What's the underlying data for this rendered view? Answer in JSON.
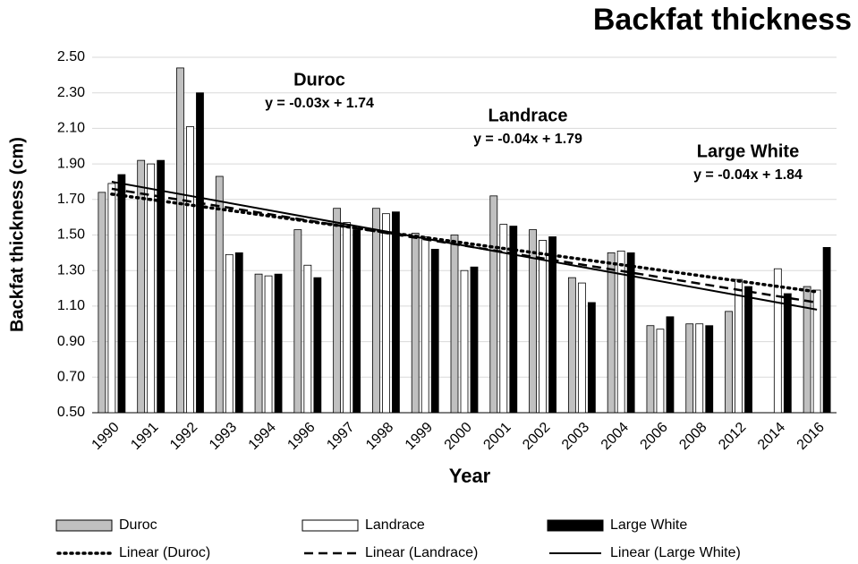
{
  "chart_data": {
    "type": "bar",
    "title": "Backfat thickness",
    "x_label": "Year",
    "y_label": "Backfat thickness (cm)",
    "categories": [
      "1990",
      "1991",
      "1992",
      "1993",
      "1994",
      "1996",
      "1997",
      "1998",
      "1999",
      "2000",
      "2001",
      "2002",
      "2003",
      "2004",
      "2006",
      "2008",
      "2012",
      "2014",
      "2016"
    ],
    "series": [
      {
        "name": "Duroc",
        "color": "#c0c0c0",
        "values": [
          1.74,
          1.92,
          2.44,
          1.83,
          1.28,
          1.53,
          1.65,
          1.65,
          1.51,
          1.5,
          1.72,
          1.53,
          1.26,
          1.4,
          0.99,
          1.0,
          1.07,
          null,
          1.21
        ]
      },
      {
        "name": "Landrace",
        "color": "#ffffff",
        "values": [
          1.79,
          1.9,
          2.11,
          1.39,
          1.27,
          1.33,
          1.57,
          1.62,
          1.49,
          1.3,
          1.56,
          1.47,
          1.23,
          1.41,
          0.97,
          1.0,
          1.25,
          1.31,
          1.19
        ]
      },
      {
        "name": "Large White",
        "color": "#000000",
        "values": [
          1.84,
          1.92,
          2.3,
          1.4,
          1.28,
          1.26,
          1.53,
          1.63,
          1.42,
          1.32,
          1.55,
          1.49,
          1.12,
          1.4,
          1.04,
          0.99,
          1.21,
          1.17,
          1.43
        ]
      }
    ],
    "trendlines": [
      {
        "name": "Linear (Duroc)",
        "label": "Duroc",
        "equation": "y = -0.03x + 1.74",
        "style": "dotted",
        "values": [
          1.73,
          1.18
        ]
      },
      {
        "name": "Linear (Landrace)",
        "label": "Landrace",
        "equation": "y = -0.04x + 1.79",
        "style": "dashed",
        "values": [
          1.76,
          1.12
        ]
      },
      {
        "name": "Linear (Large White)",
        "label": "Large White",
        "equation": "y = -0.04x + 1.84",
        "style": "solid",
        "values": [
          1.8,
          1.08
        ]
      }
    ],
    "ylim": [
      0.5,
      2.5
    ],
    "yticks": [
      {
        "value": 0.5,
        "label": "0.50"
      },
      {
        "value": 0.7,
        "label": "0.70"
      },
      {
        "value": 0.9,
        "label": "0.90"
      },
      {
        "value": 1.1,
        "label": "1.10"
      },
      {
        "value": 1.3,
        "label": "1.30"
      },
      {
        "value": 1.5,
        "label": "1.50"
      },
      {
        "value": 1.7,
        "label": "1.70"
      },
      {
        "value": 1.9,
        "label": "1.90"
      },
      {
        "value": 2.1,
        "label": "2.10"
      },
      {
        "value": 2.3,
        "label": "2.30"
      },
      {
        "value": 2.5,
        "label": "2.50"
      }
    ],
    "grid": true
  }
}
